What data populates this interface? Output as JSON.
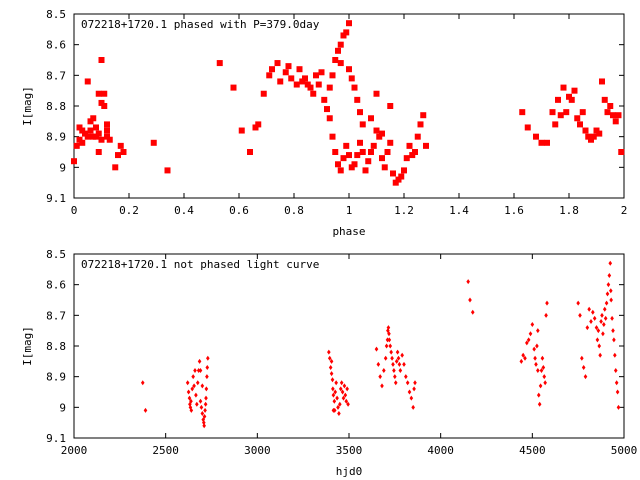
{
  "chart_data": [
    {
      "type": "scatter",
      "title": "072218+1720.1 phased with P=379.0day",
      "xlabel": "phase",
      "ylabel": "I[mag]",
      "xlim": [
        0,
        2
      ],
      "ylim": [
        9.1,
        8.5
      ],
      "y_inverted": true,
      "marker": "filled-square",
      "color": "#ff0000",
      "grid": false,
      "x_ticks": [
        "0",
        "0.2",
        "0.4",
        "0.6",
        "0.8",
        "1",
        "1.2",
        "1.4",
        "1.6",
        "1.8",
        "2"
      ],
      "y_ticks": [
        "8.5",
        "8.6",
        "8.7",
        "8.8",
        "8.9",
        "9",
        "9.1"
      ],
      "points": [
        [
          0.0,
          8.98
        ],
        [
          0.01,
          8.93
        ],
        [
          0.02,
          8.91
        ],
        [
          0.02,
          8.87
        ],
        [
          0.03,
          8.92
        ],
        [
          0.03,
          8.88
        ],
        [
          0.04,
          8.89
        ],
        [
          0.05,
          8.9
        ],
        [
          0.05,
          8.72
        ],
        [
          0.06,
          8.85
        ],
        [
          0.06,
          8.88
        ],
        [
          0.07,
          8.9
        ],
        [
          0.07,
          8.84
        ],
        [
          0.08,
          8.9
        ],
        [
          0.08,
          8.87
        ],
        [
          0.09,
          8.89
        ],
        [
          0.09,
          8.76
        ],
        [
          0.1,
          8.79
        ],
        [
          0.1,
          8.65
        ],
        [
          0.1,
          8.91
        ],
        [
          0.11,
          8.8
        ],
        [
          0.11,
          8.76
        ],
        [
          0.12,
          8.88
        ],
        [
          0.12,
          8.9
        ],
        [
          0.12,
          8.86
        ],
        [
          0.13,
          8.91
        ],
        [
          0.09,
          8.95
        ],
        [
          0.15,
          9.0
        ],
        [
          0.16,
          8.96
        ],
        [
          0.17,
          8.93
        ],
        [
          0.18,
          8.95
        ],
        [
          0.29,
          8.92
        ],
        [
          0.34,
          9.01
        ],
        [
          0.53,
          8.66
        ],
        [
          0.58,
          8.74
        ],
        [
          0.61,
          8.88
        ],
        [
          0.64,
          8.95
        ],
        [
          0.66,
          8.87
        ],
        [
          0.67,
          8.86
        ],
        [
          0.69,
          8.76
        ],
        [
          0.71,
          8.7
        ],
        [
          0.72,
          8.68
        ],
        [
          0.74,
          8.66
        ],
        [
          0.75,
          8.72
        ],
        [
          0.77,
          8.69
        ],
        [
          0.78,
          8.67
        ],
        [
          0.79,
          8.71
        ],
        [
          0.81,
          8.73
        ],
        [
          0.82,
          8.68
        ],
        [
          0.83,
          8.72
        ],
        [
          0.84,
          8.71
        ],
        [
          0.85,
          8.73
        ],
        [
          0.86,
          8.74
        ],
        [
          0.87,
          8.76
        ],
        [
          0.88,
          8.7
        ],
        [
          0.89,
          8.73
        ],
        [
          0.9,
          8.69
        ],
        [
          0.91,
          8.78
        ],
        [
          0.92,
          8.81
        ],
        [
          0.93,
          8.74
        ],
        [
          0.94,
          8.7
        ],
        [
          0.95,
          8.65
        ],
        [
          0.96,
          8.62
        ],
        [
          0.97,
          8.6
        ],
        [
          0.98,
          8.57
        ],
        [
          0.99,
          8.56
        ],
        [
          1.0,
          8.53
        ],
        [
          0.97,
          8.66
        ],
        [
          1.0,
          8.68
        ],
        [
          1.01,
          8.71
        ],
        [
          1.02,
          8.74
        ],
        [
          1.03,
          8.78
        ],
        [
          1.04,
          8.82
        ],
        [
          1.05,
          8.86
        ],
        [
          0.93,
          8.84
        ],
        [
          0.94,
          8.9
        ],
        [
          0.95,
          8.95
        ],
        [
          0.96,
          8.99
        ],
        [
          0.97,
          9.01
        ],
        [
          0.98,
          8.97
        ],
        [
          0.99,
          8.93
        ],
        [
          1.0,
          8.96
        ],
        [
          1.01,
          9.0
        ],
        [
          1.02,
          8.99
        ],
        [
          1.03,
          8.96
        ],
        [
          1.04,
          8.92
        ],
        [
          1.05,
          8.95
        ],
        [
          1.06,
          9.01
        ],
        [
          1.07,
          8.98
        ],
        [
          1.08,
          8.95
        ],
        [
          1.09,
          8.93
        ],
        [
          1.1,
          8.88
        ],
        [
          1.11,
          8.9
        ],
        [
          1.12,
          8.97
        ],
        [
          1.13,
          9.0
        ],
        [
          1.14,
          8.95
        ],
        [
          1.15,
          8.92
        ],
        [
          1.16,
          9.02
        ],
        [
          1.17,
          9.05
        ],
        [
          1.18,
          9.04
        ],
        [
          1.19,
          9.03
        ],
        [
          1.2,
          9.01
        ],
        [
          1.21,
          8.97
        ],
        [
          1.22,
          8.93
        ],
        [
          1.23,
          8.96
        ],
        [
          1.24,
          8.95
        ],
        [
          1.25,
          8.9
        ],
        [
          1.26,
          8.86
        ],
        [
          1.27,
          8.83
        ],
        [
          1.28,
          8.93
        ],
        [
          1.08,
          8.84
        ],
        [
          1.1,
          8.76
        ],
        [
          1.12,
          8.89
        ],
        [
          1.15,
          8.8
        ],
        [
          1.63,
          8.82
        ],
        [
          1.65,
          8.87
        ],
        [
          1.68,
          8.9
        ],
        [
          1.7,
          8.92
        ],
        [
          1.72,
          8.92
        ],
        [
          1.74,
          8.82
        ],
        [
          1.75,
          8.86
        ],
        [
          1.76,
          8.78
        ],
        [
          1.77,
          8.83
        ],
        [
          1.78,
          8.74
        ],
        [
          1.79,
          8.82
        ],
        [
          1.8,
          8.77
        ],
        [
          1.81,
          8.78
        ],
        [
          1.82,
          8.75
        ],
        [
          1.83,
          8.84
        ],
        [
          1.84,
          8.86
        ],
        [
          1.85,
          8.82
        ],
        [
          1.86,
          8.88
        ],
        [
          1.87,
          8.9
        ],
        [
          1.88,
          8.91
        ],
        [
          1.89,
          8.9
        ],
        [
          1.9,
          8.88
        ],
        [
          1.91,
          8.89
        ],
        [
          1.92,
          8.72
        ],
        [
          1.93,
          8.78
        ],
        [
          1.94,
          8.82
        ],
        [
          1.95,
          8.8
        ],
        [
          1.96,
          8.83
        ],
        [
          1.97,
          8.85
        ],
        [
          1.98,
          8.83
        ],
        [
          1.99,
          8.95
        ]
      ]
    },
    {
      "type": "scatter",
      "title": "072218+1720.1 not phased light curve",
      "xlabel": "hjd0",
      "ylabel": "I[mag]",
      "xlim": [
        2000,
        5000
      ],
      "ylim": [
        9.1,
        8.5
      ],
      "y_inverted": true,
      "marker": "small-diamond",
      "color": "#ff0000",
      "grid": false,
      "x_ticks": [
        "2000",
        "2500",
        "3000",
        "3500",
        "4000",
        "4500",
        "5000"
      ],
      "y_ticks": [
        "8.5",
        "8.6",
        "8.7",
        "8.8",
        "8.9",
        "9",
        "9.1"
      ],
      "points": [
        [
          2375,
          8.92
        ],
        [
          2390,
          9.01
        ],
        [
          2620,
          8.92
        ],
        [
          2625,
          8.95
        ],
        [
          2630,
          8.97
        ],
        [
          2632,
          8.99
        ],
        [
          2635,
          9.0
        ],
        [
          2638,
          8.98
        ],
        [
          2640,
          9.01
        ],
        [
          2645,
          8.94
        ],
        [
          2650,
          8.9
        ],
        [
          2655,
          8.93
        ],
        [
          2660,
          8.88
        ],
        [
          2665,
          8.96
        ],
        [
          2670,
          8.99
        ],
        [
          2675,
          8.92
        ],
        [
          2680,
          8.88
        ],
        [
          2685,
          8.85
        ],
        [
          2690,
          8.98
        ],
        [
          2695,
          9.0
        ],
        [
          2700,
          9.02
        ],
        [
          2705,
          9.04
        ],
        [
          2708,
          9.05
        ],
        [
          2710,
          9.06
        ],
        [
          2712,
          9.03
        ],
        [
          2715,
          9.01
        ],
        [
          2718,
          8.99
        ],
        [
          2720,
          8.97
        ],
        [
          2722,
          8.94
        ],
        [
          2725,
          8.9
        ],
        [
          2727,
          8.87
        ],
        [
          2730,
          8.84
        ],
        [
          2700,
          8.93
        ],
        [
          2690,
          8.88
        ],
        [
          3390,
          8.82
        ],
        [
          3395,
          8.84
        ],
        [
          3400,
          8.87
        ],
        [
          3405,
          8.89
        ],
        [
          3410,
          8.91
        ],
        [
          3412,
          8.94
        ],
        [
          3415,
          8.96
        ],
        [
          3420,
          8.98
        ],
        [
          3422,
          9.01
        ],
        [
          3425,
          8.95
        ],
        [
          3430,
          8.92
        ],
        [
          3435,
          8.97
        ],
        [
          3440,
          9.0
        ],
        [
          3445,
          9.02
        ],
        [
          3450,
          8.99
        ],
        [
          3455,
          8.94
        ],
        [
          3460,
          8.92
        ],
        [
          3465,
          8.95
        ],
        [
          3470,
          8.97
        ],
        [
          3475,
          8.93
        ],
        [
          3480,
          8.96
        ],
        [
          3485,
          8.98
        ],
        [
          3490,
          8.94
        ],
        [
          3495,
          8.99
        ],
        [
          3415,
          9.01
        ],
        [
          3405,
          8.85
        ],
        [
          3650,
          8.81
        ],
        [
          3660,
          8.86
        ],
        [
          3670,
          8.9
        ],
        [
          3680,
          8.93
        ],
        [
          3690,
          8.88
        ],
        [
          3700,
          8.84
        ],
        [
          3705,
          8.8
        ],
        [
          3710,
          8.78
        ],
        [
          3712,
          8.75
        ],
        [
          3715,
          8.74
        ],
        [
          3718,
          8.76
        ],
        [
          3720,
          8.78
        ],
        [
          3725,
          8.8
        ],
        [
          3730,
          8.82
        ],
        [
          3735,
          8.84
        ],
        [
          3740,
          8.86
        ],
        [
          3745,
          8.88
        ],
        [
          3750,
          8.9
        ],
        [
          3755,
          8.92
        ],
        [
          3760,
          8.85
        ],
        [
          3765,
          8.82
        ],
        [
          3770,
          8.84
        ],
        [
          3775,
          8.86
        ],
        [
          3780,
          8.88
        ],
        [
          3790,
          8.83
        ],
        [
          3800,
          8.86
        ],
        [
          3810,
          8.9
        ],
        [
          3820,
          8.92
        ],
        [
          3830,
          8.95
        ],
        [
          3840,
          8.97
        ],
        [
          3850,
          9.0
        ],
        [
          3855,
          8.94
        ],
        [
          3860,
          8.92
        ],
        [
          4150,
          8.59
        ],
        [
          4160,
          8.65
        ],
        [
          4175,
          8.69
        ],
        [
          4440,
          8.85
        ],
        [
          4450,
          8.83
        ],
        [
          4460,
          8.84
        ],
        [
          4470,
          8.79
        ],
        [
          4480,
          8.78
        ],
        [
          4490,
          8.76
        ],
        [
          4500,
          8.73
        ],
        [
          4510,
          8.81
        ],
        [
          4515,
          8.84
        ],
        [
          4520,
          8.86
        ],
        [
          4525,
          8.8
        ],
        [
          4530,
          8.88
        ],
        [
          4535,
          8.96
        ],
        [
          4540,
          8.99
        ],
        [
          4545,
          8.93
        ],
        [
          4550,
          8.88
        ],
        [
          4555,
          8.84
        ],
        [
          4560,
          8.87
        ],
        [
          4565,
          8.9
        ],
        [
          4570,
          8.92
        ],
        [
          4575,
          8.7
        ],
        [
          4580,
          8.66
        ],
        [
          4530,
          8.75
        ],
        [
          4750,
          8.66
        ],
        [
          4760,
          8.7
        ],
        [
          4770,
          8.84
        ],
        [
          4780,
          8.87
        ],
        [
          4790,
          8.9
        ],
        [
          4800,
          8.74
        ],
        [
          4810,
          8.68
        ],
        [
          4820,
          8.72
        ],
        [
          4830,
          8.69
        ],
        [
          4840,
          8.71
        ],
        [
          4850,
          8.74
        ],
        [
          4855,
          8.78
        ],
        [
          4860,
          8.75
        ],
        [
          4865,
          8.8
        ],
        [
          4870,
          8.83
        ],
        [
          4875,
          8.72
        ],
        [
          4880,
          8.7
        ],
        [
          4885,
          8.76
        ],
        [
          4890,
          8.73
        ],
        [
          4895,
          8.68
        ],
        [
          4900,
          8.71
        ],
        [
          4905,
          8.66
        ],
        [
          4910,
          8.63
        ],
        [
          4915,
          8.6
        ],
        [
          4920,
          8.57
        ],
        [
          4925,
          8.53
        ],
        [
          4928,
          8.62
        ],
        [
          4930,
          8.65
        ],
        [
          4935,
          8.71
        ],
        [
          4940,
          8.75
        ],
        [
          4945,
          8.78
        ],
        [
          4950,
          8.83
        ],
        [
          4955,
          8.88
        ],
        [
          4960,
          8.92
        ],
        [
          4965,
          8.95
        ],
        [
          4970,
          9.0
        ]
      ]
    }
  ]
}
